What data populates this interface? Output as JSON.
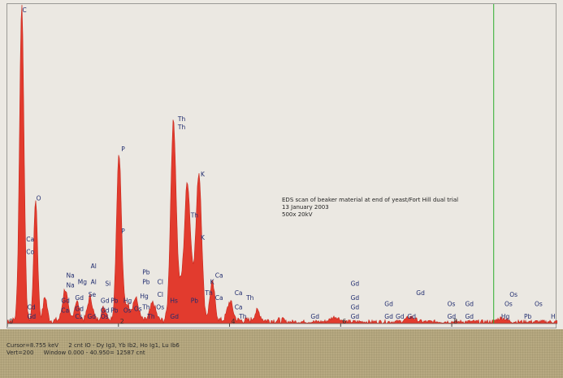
{
  "chart_data": {
    "type": "area",
    "title": "",
    "xlabel": "",
    "ylabel": "",
    "xlim": [
      0,
      9.9
    ],
    "x_ticks": [
      "0",
      "2",
      "4",
      "6",
      "8"
    ],
    "grid": false,
    "series_color": "#e23b2e",
    "cursor_x": 8.755,
    "peaks": [
      {
        "x": 0.26,
        "h": 1.0,
        "w": 0.04
      },
      {
        "x": 0.51,
        "h": 0.385,
        "w": 0.035
      },
      {
        "x": 0.68,
        "h": 0.075,
        "w": 0.035
      },
      {
        "x": 1.04,
        "h": 0.1,
        "w": 0.045
      },
      {
        "x": 1.25,
        "h": 0.06,
        "w": 0.045
      },
      {
        "x": 1.49,
        "h": 0.075,
        "w": 0.045
      },
      {
        "x": 1.74,
        "h": 0.04,
        "w": 0.05
      },
      {
        "x": 2.01,
        "h": 0.53,
        "w": 0.045
      },
      {
        "x": 2.16,
        "h": 0.05,
        "w": 0.05
      },
      {
        "x": 2.31,
        "h": 0.07,
        "w": 0.05
      },
      {
        "x": 2.62,
        "h": 0.055,
        "w": 0.05
      },
      {
        "x": 2.99,
        "h": 0.63,
        "w": 0.05
      },
      {
        "x": 3.13,
        "h": 0.09,
        "w": 0.05
      },
      {
        "x": 3.24,
        "h": 0.42,
        "w": 0.05
      },
      {
        "x": 3.34,
        "h": 0.09,
        "w": 0.05
      },
      {
        "x": 3.45,
        "h": 0.46,
        "w": 0.05
      },
      {
        "x": 3.69,
        "h": 0.12,
        "w": 0.045
      },
      {
        "x": 4.01,
        "h": 0.06,
        "w": 0.05
      },
      {
        "x": 4.5,
        "h": 0.03,
        "w": 0.05
      },
      {
        "x": 5.9,
        "h": 0.015,
        "w": 0.08
      },
      {
        "x": 7.26,
        "h": 0.015,
        "w": 0.08
      },
      {
        "x": 8.9,
        "h": 0.012,
        "w": 0.08
      }
    ],
    "noise_level": 0.02,
    "element_labels": [
      {
        "t": "C",
        "x": 0.27,
        "y": 1.005
      },
      {
        "t": "O",
        "x": 0.52,
        "y": 0.39
      },
      {
        "t": "Ca",
        "x": 0.34,
        "y": 0.26
      },
      {
        "t": "Co",
        "x": 0.34,
        "y": 0.22
      },
      {
        "t": "Cd",
        "x": 0.36,
        "y": 0.045
      },
      {
        "t": "Gd",
        "x": 0.36,
        "y": 0.015
      },
      {
        "t": "Na",
        "x": 1.06,
        "y": 0.145
      },
      {
        "t": "Na",
        "x": 1.06,
        "y": 0.115
      },
      {
        "t": "Gd",
        "x": 0.97,
        "y": 0.065
      },
      {
        "t": "Ca",
        "x": 0.97,
        "y": 0.035
      },
      {
        "t": "Mg",
        "x": 1.27,
        "y": 0.125
      },
      {
        "t": "Gd",
        "x": 1.22,
        "y": 0.075
      },
      {
        "t": "Gd",
        "x": 1.22,
        "y": 0.04
      },
      {
        "t": "Cs",
        "x": 1.22,
        "y": 0.015
      },
      {
        "t": "Al",
        "x": 1.5,
        "y": 0.175
      },
      {
        "t": "Al",
        "x": 1.5,
        "y": 0.125
      },
      {
        "t": "Se",
        "x": 1.46,
        "y": 0.085
      },
      {
        "t": "Si",
        "x": 1.76,
        "y": 0.12
      },
      {
        "t": "Gd",
        "x": 1.68,
        "y": 0.065
      },
      {
        "t": "Gd",
        "x": 1.68,
        "y": 0.035
      },
      {
        "t": "Os",
        "x": 1.68,
        "y": 0.015
      },
      {
        "t": "Gd",
        "x": 1.44,
        "y": 0.015
      },
      {
        "t": "Pb",
        "x": 1.86,
        "y": 0.065
      },
      {
        "t": "Pb",
        "x": 1.86,
        "y": 0.035
      },
      {
        "t": "P",
        "x": 2.05,
        "y": 0.545
      },
      {
        "t": "P",
        "x": 2.05,
        "y": 0.285
      },
      {
        "t": "Hg",
        "x": 2.09,
        "y": 0.065
      },
      {
        "t": "Os",
        "x": 2.09,
        "y": 0.035
      },
      {
        "t": "Os",
        "x": 2.28,
        "y": 0.04
      },
      {
        "t": "Pb",
        "x": 2.43,
        "y": 0.155
      },
      {
        "t": "Pb",
        "x": 2.43,
        "y": 0.125
      },
      {
        "t": "Hg",
        "x": 2.39,
        "y": 0.08
      },
      {
        "t": "Th",
        "x": 2.43,
        "y": 0.045
      },
      {
        "t": "Th",
        "x": 2.52,
        "y": 0.015
      },
      {
        "t": "Cl",
        "x": 2.7,
        "y": 0.125
      },
      {
        "t": "Cl",
        "x": 2.7,
        "y": 0.085
      },
      {
        "t": "Os",
        "x": 2.68,
        "y": 0.045
      },
      {
        "t": "Hs",
        "x": 2.93,
        "y": 0.065
      },
      {
        "t": "Gd",
        "x": 2.93,
        "y": 0.015
      },
      {
        "t": "Th",
        "x": 3.07,
        "y": 0.64
      },
      {
        "t": "Th",
        "x": 3.07,
        "y": 0.615
      },
      {
        "t": "Th",
        "x": 3.3,
        "y": 0.335
      },
      {
        "t": "Pb",
        "x": 3.3,
        "y": 0.065
      },
      {
        "t": "K",
        "x": 3.48,
        "y": 0.465
      },
      {
        "t": "K",
        "x": 3.48,
        "y": 0.265
      },
      {
        "t": "Th",
        "x": 3.56,
        "y": 0.09
      },
      {
        "t": "Ca",
        "x": 3.74,
        "y": 0.145
      },
      {
        "t": "K",
        "x": 3.65,
        "y": 0.125
      },
      {
        "t": "Ca",
        "x": 3.74,
        "y": 0.075
      },
      {
        "t": "Ca",
        "x": 4.09,
        "y": 0.09
      },
      {
        "t": "Ca",
        "x": 4.09,
        "y": 0.045
      },
      {
        "t": "Th",
        "x": 4.3,
        "y": 0.075
      },
      {
        "t": "Th",
        "x": 4.17,
        "y": 0.015
      },
      {
        "t": "Gd",
        "x": 5.46,
        "y": 0.015
      },
      {
        "t": "Gd",
        "x": 6.18,
        "y": 0.12
      },
      {
        "t": "Gd",
        "x": 6.18,
        "y": 0.075
      },
      {
        "t": "Gd",
        "x": 6.18,
        "y": 0.045
      },
      {
        "t": "Gd",
        "x": 6.18,
        "y": 0.015
      },
      {
        "t": "Gd",
        "x": 6.79,
        "y": 0.055
      },
      {
        "t": "Gd",
        "x": 6.79,
        "y": 0.015
      },
      {
        "t": "Gd",
        "x": 6.99,
        "y": 0.015
      },
      {
        "t": "Gd",
        "x": 7.2,
        "y": 0.015
      },
      {
        "t": "Gd",
        "x": 7.36,
        "y": 0.09
      },
      {
        "t": "Os",
        "x": 7.92,
        "y": 0.055
      },
      {
        "t": "Gd",
        "x": 7.92,
        "y": 0.015
      },
      {
        "t": "Gd",
        "x": 8.24,
        "y": 0.055
      },
      {
        "t": "Gd",
        "x": 8.24,
        "y": 0.015
      },
      {
        "t": "Os",
        "x": 9.04,
        "y": 0.085
      },
      {
        "t": "Os",
        "x": 8.95,
        "y": 0.055
      },
      {
        "t": "Hg",
        "x": 8.89,
        "y": 0.015
      },
      {
        "t": "Pb",
        "x": 9.3,
        "y": 0.015
      },
      {
        "t": "Os",
        "x": 9.49,
        "y": 0.055
      },
      {
        "t": "H",
        "x": 9.95,
        "y": 0.015
      }
    ]
  },
  "annotation": {
    "line1": "EDS scan of beaker material at end of yeast/Fort Hill dual trial",
    "line2": "13 January 2003",
    "line3": "500x 20kV"
  },
  "status": {
    "cursor": "Cursor=8.755 keV",
    "counts": "2 cnt  IO - Dy Ig3, Yb Ib2, Ho Ig1, Lu Ib6",
    "vert": "Vert=200",
    "window": "Window  0.000 - 40.950=    12587 cnt"
  }
}
